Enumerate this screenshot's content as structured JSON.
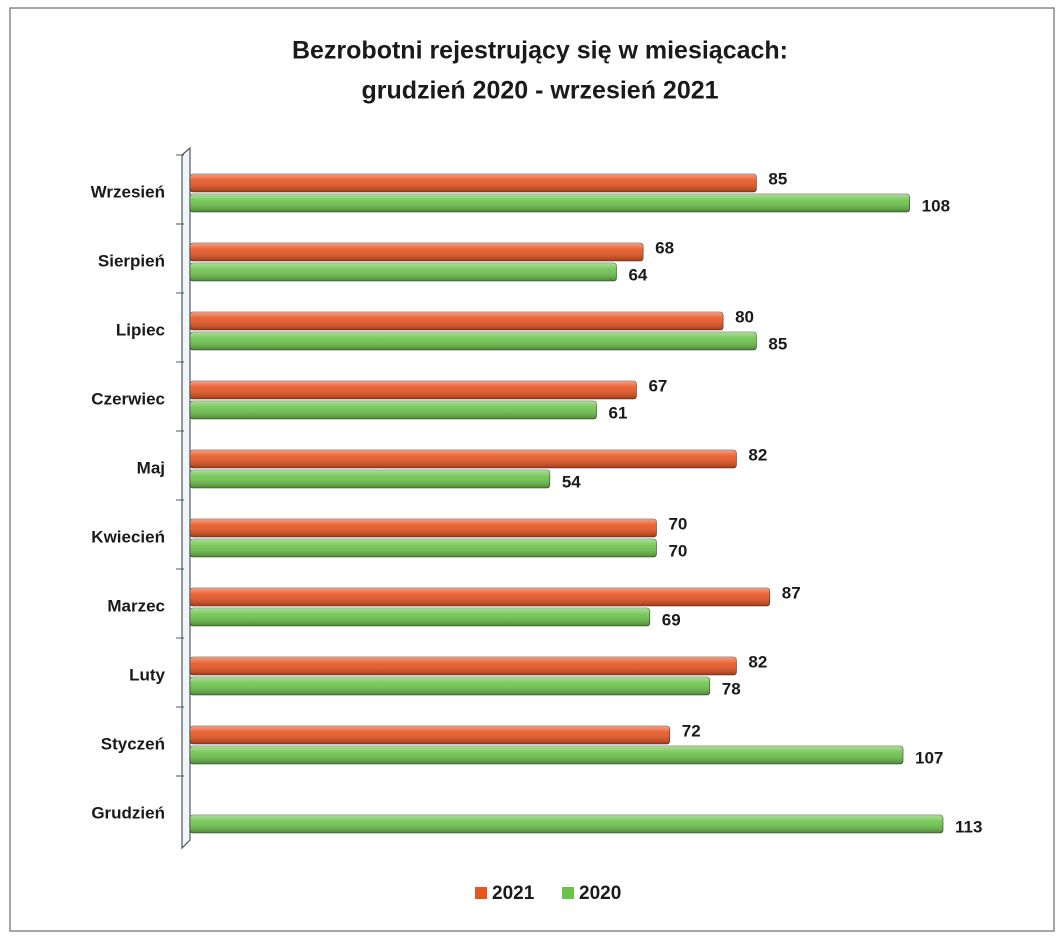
{
  "chart_data": {
    "type": "bar",
    "orientation": "horizontal",
    "title": [
      "Bezrobotni rejestrujący się w miesiącach:",
      "grudzień 2020 - wrzesień 2021"
    ],
    "categories": [
      "Wrzesień",
      "Sierpień",
      "Lipiec",
      "Czerwiec",
      "Maj",
      "Kwiecień",
      "Marzec",
      "Luty",
      "Styczeń",
      "Grudzień"
    ],
    "series": [
      {
        "name": "2021",
        "color": "#e8531f",
        "values": [
          85,
          68,
          80,
          67,
          82,
          70,
          87,
          82,
          72,
          null
        ]
      },
      {
        "name": "2020",
        "color": "#6cc34a",
        "values": [
          108,
          64,
          85,
          61,
          54,
          70,
          69,
          78,
          107,
          113
        ]
      }
    ],
    "legend": "bottom"
  }
}
